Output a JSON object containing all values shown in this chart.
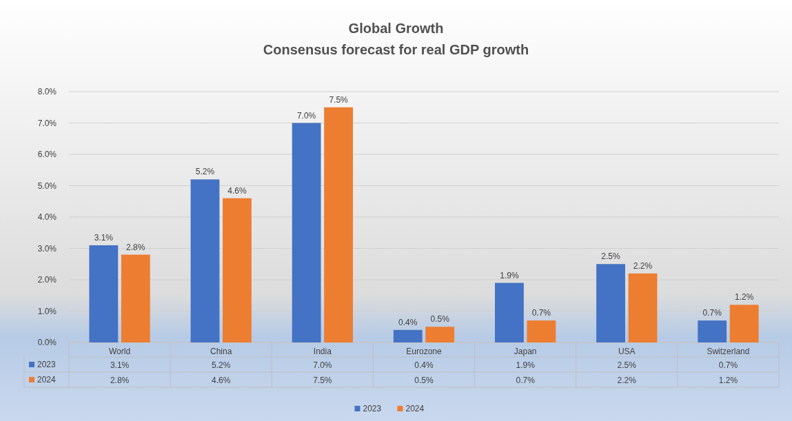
{
  "chart_data": {
    "type": "bar",
    "title": "Global Growth",
    "subtitle": "Consensus forecast for real GDP growth",
    "categories": [
      "World",
      "China",
      "India",
      "Eurozone",
      "Japan",
      "USA",
      "Switzerland"
    ],
    "series": [
      {
        "name": "2023",
        "color": "#4472c4",
        "values": [
          3.1,
          5.2,
          7.0,
          0.4,
          1.9,
          2.5,
          0.7
        ],
        "value_labels": [
          "3.1%",
          "5.2%",
          "7.0%",
          "0.4%",
          "1.9%",
          "2.5%",
          "0.7%"
        ]
      },
      {
        "name": "2024",
        "color": "#ed7d31",
        "values": [
          2.8,
          4.6,
          7.5,
          0.5,
          0.7,
          2.2,
          1.2
        ],
        "value_labels": [
          "2.8%",
          "4.6%",
          "7.5%",
          "0.5%",
          "0.7%",
          "2.2%",
          "1.2%"
        ]
      }
    ],
    "ylim": [
      0,
      8
    ],
    "yticks": [
      {
        "value": 0,
        "label": "0.0%"
      },
      {
        "value": 1,
        "label": "1.0%"
      },
      {
        "value": 2,
        "label": "2.0%"
      },
      {
        "value": 3,
        "label": "3.0%"
      },
      {
        "value": 4,
        "label": "4.0%"
      },
      {
        "value": 5,
        "label": "5.0%"
      },
      {
        "value": 6,
        "label": "6.0%"
      },
      {
        "value": 7,
        "label": "7.0%"
      },
      {
        "value": 8,
        "label": "8.0%"
      }
    ],
    "grid": "y",
    "legend": "bottom"
  }
}
